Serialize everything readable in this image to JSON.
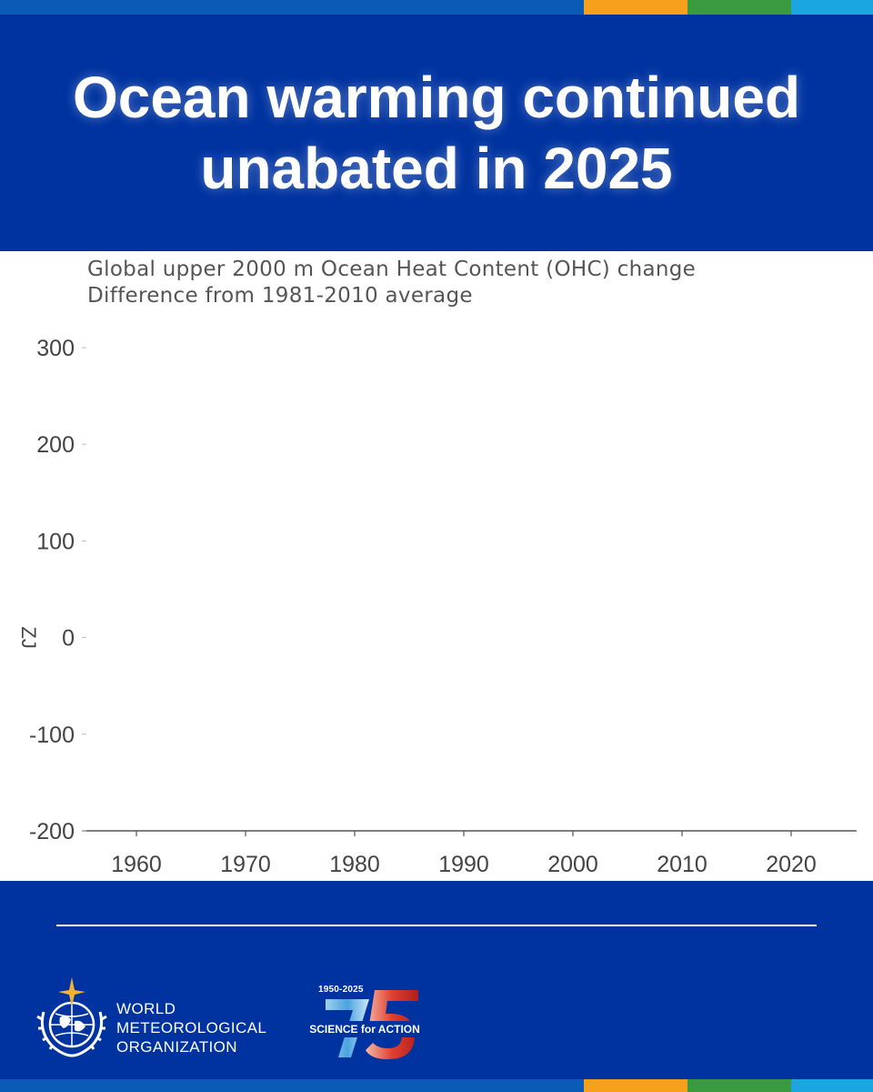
{
  "header": {
    "title_line1": "Ocean warming continued",
    "title_line2": "unabated in 2025"
  },
  "stripe_colors": [
    "#0a5bb5",
    "#f7a01e",
    "#3a9a3f",
    "#1aa6df"
  ],
  "chart_data": {
    "type": "line",
    "subtitle_line1": "Global upper 2000 m Ocean Heat Content (OHC) change",
    "subtitle_line2": "Difference from 1981-2010 average",
    "ylabel": "ZJ",
    "xlabel": "",
    "xlim": [
      1955,
      2026
    ],
    "ylim": [
      -200,
      300
    ],
    "x_ticks": [
      1960,
      1970,
      1980,
      1990,
      2000,
      2010,
      2020
    ],
    "y_ticks": [
      300,
      200,
      100,
      0,
      -100,
      -200
    ],
    "series": [],
    "grid": false
  },
  "footer": {
    "org_line1": "WORLD",
    "org_line2": "METEOROLOGICAL",
    "org_line3": "ORGANIZATION",
    "anniv_years": "1950-2025",
    "anniv_number": "75",
    "anniv_tag": "SCIENCE for ACTION"
  },
  "colors": {
    "brand_blue": "#0033a0",
    "axis": "#555555",
    "tick_text": "#444444"
  }
}
